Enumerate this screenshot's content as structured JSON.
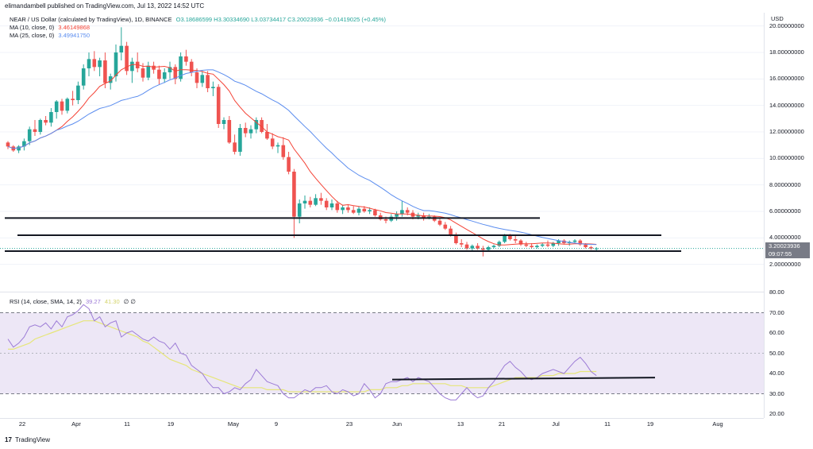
{
  "header": {
    "text": "elimandambell published on TradingView.com, Jul 13, 2022 14:52 UTC"
  },
  "legend": {
    "title": "NEAR / US Dollar (calculated by TradingView), 1D, BINANCE",
    "ohlc": "O3.18686599 H3.30334690 L3.03734417 C3.20023936 −0.01419025 (+0.45%)",
    "ma10_label": "MA (10, close, 0)",
    "ma10_value": "3.46149868",
    "ma25_label": "MA (25, close, 0)",
    "ma25_value": "3.49941750",
    "rsi_label": "RSI (14, close, SMA, 14, 2)",
    "rsi_value": "39.27",
    "rsi_ma_value": "41.30",
    "rsi_extra": "∅ ∅"
  },
  "price_axis": {
    "currency": "USD",
    "ticks": [
      "20.00000000",
      "18.00000000",
      "16.00000000",
      "14.00000000",
      "12.00000000",
      "10.00000000",
      "8.00000000",
      "6.00000000",
      "4.00000000",
      "2.00000000"
    ],
    "last_price": "3.20023936",
    "countdown": "09:07:55"
  },
  "rsi_axis": {
    "ticks": [
      "80.00",
      "70.00",
      "60.00",
      "50.00",
      "40.00",
      "30.00",
      "20.00"
    ]
  },
  "time_axis": {
    "ticks": [
      "22",
      "Apr",
      "11",
      "19",
      "May",
      "9",
      "23",
      "Jun",
      "13",
      "21",
      "Jul",
      "11",
      "19",
      "Aug"
    ]
  },
  "brand": {
    "logo": "17",
    "name": "TradingView"
  },
  "colors": {
    "up": "#26a69a",
    "down": "#ef5350",
    "ma10": "#f44336",
    "ma25": "#5b8def",
    "rsi": "#9c7bd6",
    "rsi_ma": "#e6e67a",
    "band": "#ede7f6",
    "line": "#131722"
  },
  "chart_data": {
    "type": "candlestick",
    "symbol": "NEAR/USD",
    "ylim": [
      0,
      21
    ],
    "candles": [
      [
        11.2,
        11.3,
        10.7,
        10.9
      ],
      [
        10.9,
        11.0,
        10.5,
        10.6
      ],
      [
        10.6,
        11.0,
        10.4,
        10.9
      ],
      [
        10.9,
        11.5,
        10.6,
        11.3
      ],
      [
        11.3,
        12.4,
        11.0,
        12.2
      ],
      [
        12.2,
        12.9,
        11.7,
        12.0
      ],
      [
        12.0,
        13.0,
        11.8,
        12.9
      ],
      [
        12.9,
        13.2,
        12.5,
        12.7
      ],
      [
        12.7,
        13.8,
        12.4,
        13.5
      ],
      [
        13.5,
        14.4,
        13.0,
        14.3
      ],
      [
        14.3,
        14.5,
        13.3,
        13.6
      ],
      [
        13.6,
        14.6,
        13.4,
        14.5
      ],
      [
        14.5,
        15.1,
        14.0,
        14.4
      ],
      [
        14.4,
        15.8,
        14.1,
        15.5
      ],
      [
        15.5,
        17.1,
        15.2,
        16.8
      ],
      [
        16.8,
        18.0,
        16.2,
        17.5
      ],
      [
        17.5,
        18.1,
        16.6,
        16.9
      ],
      [
        16.9,
        17.6,
        16.2,
        17.4
      ],
      [
        17.4,
        18.0,
        15.3,
        15.7
      ],
      [
        15.7,
        16.4,
        15.2,
        16.2
      ],
      [
        16.2,
        18.6,
        15.8,
        18.0
      ],
      [
        18.0,
        19.9,
        17.4,
        18.5
      ],
      [
        18.5,
        18.8,
        16.3,
        16.6
      ],
      [
        16.6,
        17.6,
        15.7,
        17.3
      ],
      [
        17.3,
        18.0,
        16.5,
        16.8
      ],
      [
        16.8,
        17.2,
        15.8,
        16.1
      ],
      [
        16.1,
        17.3,
        15.9,
        17.0
      ],
      [
        17.0,
        17.3,
        16.4,
        16.7
      ],
      [
        16.7,
        17.0,
        15.6,
        16.0
      ],
      [
        16.0,
        16.8,
        15.7,
        16.5
      ],
      [
        16.5,
        17.3,
        16.0,
        16.9
      ],
      [
        16.9,
        17.1,
        15.6,
        16.0
      ],
      [
        16.0,
        18.0,
        15.8,
        17.7
      ],
      [
        17.7,
        18.2,
        17.0,
        17.3
      ],
      [
        17.3,
        17.5,
        16.2,
        16.5
      ],
      [
        16.5,
        16.8,
        15.3,
        15.7
      ],
      [
        15.7,
        16.6,
        15.4,
        16.3
      ],
      [
        16.3,
        16.6,
        15.0,
        15.3
      ],
      [
        15.3,
        15.8,
        14.7,
        15.4
      ],
      [
        15.4,
        15.6,
        12.3,
        12.6
      ],
      [
        12.6,
        13.1,
        12.2,
        12.9
      ],
      [
        12.9,
        13.2,
        11.1,
        11.2
      ],
      [
        11.2,
        11.8,
        10.3,
        10.5
      ],
      [
        10.5,
        12.6,
        10.2,
        12.3
      ],
      [
        12.3,
        12.7,
        11.6,
        11.9
      ],
      [
        11.9,
        12.5,
        11.5,
        12.2
      ],
      [
        12.2,
        13.1,
        11.9,
        12.9
      ],
      [
        12.9,
        13.1,
        11.9,
        12.0
      ],
      [
        12.0,
        12.6,
        11.4,
        11.5
      ],
      [
        11.5,
        11.9,
        10.7,
        10.9
      ],
      [
        10.9,
        11.2,
        10.4,
        11.0
      ],
      [
        11.0,
        11.6,
        9.9,
        10.1
      ],
      [
        10.1,
        10.5,
        8.8,
        9.0
      ],
      [
        9.0,
        9.2,
        4.0,
        5.6
      ],
      [
        5.6,
        6.9,
        5.1,
        6.6
      ],
      [
        6.6,
        7.2,
        6.2,
        6.8
      ],
      [
        6.8,
        7.1,
        6.3,
        6.5
      ],
      [
        6.5,
        7.3,
        6.4,
        7.0
      ],
      [
        7.0,
        7.4,
        6.5,
        6.8
      ],
      [
        6.8,
        7.0,
        6.1,
        6.3
      ],
      [
        6.3,
        6.9,
        6.1,
        6.6
      ],
      [
        6.6,
        6.8,
        5.9,
        6.1
      ],
      [
        6.1,
        6.5,
        5.8,
        6.3
      ],
      [
        6.3,
        6.5,
        5.9,
        6.1
      ],
      [
        6.1,
        6.4,
        5.8,
        5.9
      ],
      [
        5.9,
        6.4,
        5.7,
        6.2
      ],
      [
        6.2,
        6.4,
        5.9,
        6.0
      ],
      [
        6.0,
        6.3,
        5.8,
        6.1
      ],
      [
        6.1,
        6.2,
        5.6,
        5.7
      ],
      [
        5.7,
        5.9,
        5.3,
        5.4
      ],
      [
        5.4,
        5.6,
        5.1,
        5.3
      ],
      [
        5.3,
        5.8,
        5.2,
        5.6
      ],
      [
        5.6,
        6.0,
        5.3,
        5.8
      ],
      [
        5.8,
        6.8,
        5.6,
        6.1
      ],
      [
        6.1,
        6.3,
        5.7,
        5.9
      ],
      [
        5.9,
        6.1,
        5.4,
        5.6
      ],
      [
        5.6,
        5.9,
        5.4,
        5.7
      ],
      [
        5.7,
        5.9,
        5.3,
        5.5
      ],
      [
        5.5,
        5.8,
        5.4,
        5.6
      ],
      [
        5.6,
        5.7,
        5.2,
        5.3
      ],
      [
        5.3,
        5.5,
        4.9,
        5.0
      ],
      [
        5.0,
        5.2,
        4.6,
        4.7
      ],
      [
        4.7,
        4.9,
        4.1,
        4.2
      ],
      [
        4.2,
        4.4,
        3.5,
        3.6
      ],
      [
        3.6,
        3.9,
        3.3,
        3.5
      ],
      [
        3.5,
        3.7,
        3.1,
        3.2
      ],
      [
        3.2,
        3.5,
        3.0,
        3.4
      ],
      [
        3.4,
        3.6,
        3.1,
        3.2
      ],
      [
        3.2,
        3.4,
        2.6,
        3.1
      ],
      [
        3.1,
        3.4,
        3.0,
        3.3
      ],
      [
        3.3,
        3.5,
        3.2,
        3.4
      ],
      [
        3.4,
        3.8,
        3.3,
        3.7
      ],
      [
        3.7,
        4.3,
        3.6,
        4.2
      ],
      [
        4.2,
        4.3,
        3.8,
        3.9
      ],
      [
        3.9,
        4.2,
        3.6,
        3.8
      ],
      [
        3.8,
        3.9,
        3.4,
        3.5
      ],
      [
        3.5,
        3.7,
        3.3,
        3.4
      ],
      [
        3.4,
        3.6,
        3.2,
        3.3
      ],
      [
        3.3,
        3.5,
        3.2,
        3.4
      ],
      [
        3.4,
        3.6,
        3.3,
        3.5
      ],
      [
        3.5,
        3.8,
        3.3,
        3.4
      ],
      [
        3.4,
        3.7,
        3.3,
        3.6
      ],
      [
        3.6,
        3.9,
        3.4,
        3.8
      ],
      [
        3.8,
        3.9,
        3.5,
        3.6
      ],
      [
        3.6,
        3.8,
        3.4,
        3.7
      ],
      [
        3.7,
        3.9,
        3.6,
        3.8
      ],
      [
        3.8,
        3.9,
        3.4,
        3.5
      ],
      [
        3.5,
        3.6,
        3.2,
        3.3
      ],
      [
        3.3,
        3.4,
        3.1,
        3.2
      ],
      [
        3.2,
        3.3,
        3.0,
        3.2
      ]
    ],
    "horizontal_lines": [
      5.5,
      4.2,
      3.0
    ],
    "rsi": [
      57,
      53,
      55,
      58,
      63,
      64,
      63,
      65,
      62,
      66,
      63,
      68,
      69,
      71,
      74,
      72,
      66,
      68,
      63,
      65,
      66,
      58,
      60,
      61,
      59,
      57,
      56,
      58,
      56,
      55,
      52,
      55,
      50,
      49,
      44,
      42,
      40,
      36,
      33,
      33,
      30,
      31,
      33,
      32,
      35,
      37,
      42,
      39,
      36,
      35,
      34,
      30,
      28,
      28,
      30,
      32,
      31,
      33,
      33,
      34,
      31,
      30,
      32,
      31,
      29,
      30,
      35,
      32,
      28,
      30,
      35,
      36,
      36,
      37,
      38,
      36,
      38,
      37,
      36,
      33,
      30,
      28,
      27,
      27,
      30,
      33,
      30,
      28,
      29,
      33,
      36,
      40,
      44,
      46,
      43,
      41,
      38,
      37,
      38,
      40,
      41,
      42,
      41,
      40,
      43,
      46,
      48,
      45,
      41,
      39
    ],
    "rsi_ma": [
      52,
      52,
      53,
      54,
      55,
      57,
      58,
      59,
      60,
      61,
      62,
      63,
      64,
      65,
      66,
      66,
      66,
      65,
      64,
      63,
      62,
      61,
      60,
      59,
      58,
      56,
      55,
      53,
      51,
      49,
      47,
      46,
      45,
      44,
      42,
      41,
      40,
      39,
      38,
      37,
      36,
      35,
      34,
      33,
      33,
      33,
      33,
      33,
      32,
      32,
      32,
      32,
      31,
      31,
      31,
      31,
      31,
      31,
      31,
      31,
      31,
      31,
      31,
      31,
      31,
      31,
      31,
      32,
      32,
      32,
      33,
      33,
      33,
      34,
      34,
      35,
      35,
      35,
      35,
      35,
      35,
      35,
      34,
      34,
      34,
      33,
      33,
      33,
      33,
      33,
      34,
      35,
      36,
      37,
      38,
      38,
      38,
      38,
      38,
      39,
      39,
      39,
      40,
      40,
      40,
      40,
      41,
      41,
      41,
      41
    ],
    "rsi_ylim": [
      20,
      80
    ],
    "rsi_trendline": [
      37,
      38
    ]
  }
}
